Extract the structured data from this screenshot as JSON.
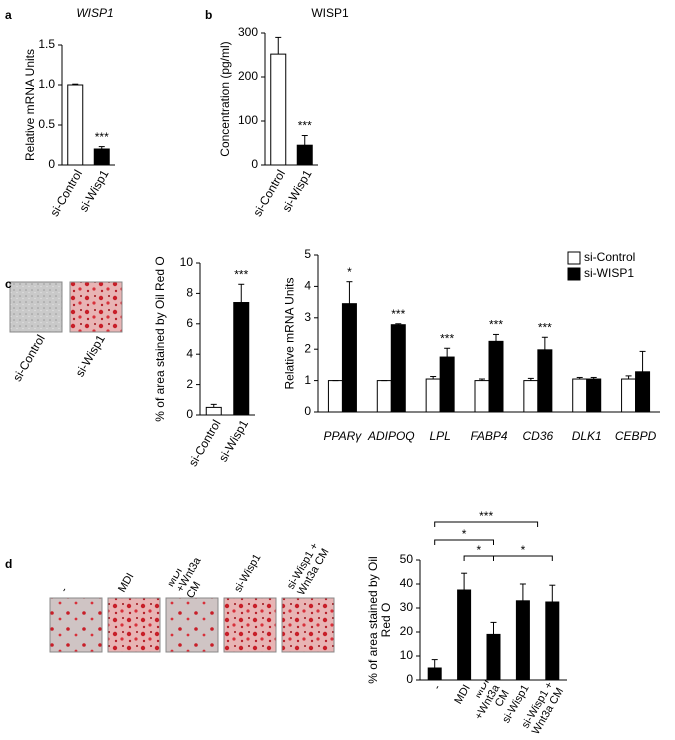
{
  "chart_data": [
    {
      "type": "bar",
      "panel": "a",
      "title": "WISP1",
      "y_label": "Relative mRNA Units",
      "categories": [
        "si-Control",
        "si-Wisp1"
      ],
      "series": [
        {
          "colors": [
            "#ffffff",
            "#000000"
          ],
          "values": [
            1.0,
            0.2
          ],
          "errors": [
            0.01,
            0.03
          ]
        }
      ],
      "annotations": [
        null,
        "***"
      ],
      "ylim": [
        0,
        1.5
      ],
      "yticks": [
        0,
        0.5,
        {
          "value": 1,
          "label": "1.0"
        },
        1.5
      ],
      "grid": false
    },
    {
      "type": "bar",
      "panel": "b",
      "title": "WISP1",
      "y_label": "Concentration  (pg/ml)",
      "categories": [
        "si-Control",
        "si-Wisp1"
      ],
      "series": [
        {
          "colors": [
            "#ffffff",
            "#000000"
          ],
          "values": [
            252,
            45
          ],
          "errors": [
            38,
            22
          ]
        }
      ],
      "annotations": [
        null,
        "***"
      ],
      "ylim": [
        0,
        300
      ],
      "yticks": [
        0,
        100,
        200,
        300
      ],
      "grid": false
    },
    {
      "type": "bar",
      "panel": "c",
      "image_labels": [
        "si-Control",
        "si-Wisp1"
      ],
      "y_label": "% of area stained by Oil Red O",
      "categories": [
        "si-Control",
        "si-Wisp1"
      ],
      "series": [
        {
          "colors": [
            "#ffffff",
            "#000000"
          ],
          "values": [
            0.5,
            7.4
          ],
          "errors": [
            0.2,
            1.2
          ]
        }
      ],
      "annotations": [
        null,
        "***"
      ],
      "ylim": [
        0,
        10
      ],
      "yticks": [
        0,
        2,
        4,
        6,
        8,
        10
      ],
      "grid": false
    },
    {
      "type": "bar",
      "y_label": "Relative mRNA Units",
      "categories": [
        "PPARγ",
        "ADIPOQ",
        "LPL",
        "FABP4",
        "CD36",
        "DLK1",
        "CEBPD"
      ],
      "series": [
        {
          "name": "si-Control",
          "color": "#ffffff",
          "values": [
            1,
            1,
            1.05,
            1,
            1,
            1.05,
            1.05
          ],
          "errors": [
            0,
            0,
            0.08,
            0.05,
            0.07,
            0.05,
            0.1
          ]
        },
        {
          "name": "si-WISP1",
          "color": "#000000",
          "values": [
            3.45,
            2.78,
            1.75,
            2.25,
            1.98,
            1.05,
            1.28
          ],
          "errors": [
            0.7,
            0.03,
            0.28,
            0.22,
            0.4,
            0.05,
            0.65
          ]
        }
      ],
      "annotations": [
        "*",
        "***",
        "***",
        "***",
        "***",
        null,
        null
      ],
      "legend": "top-right",
      "ylim": [
        0,
        5
      ],
      "yticks": [
        0,
        1,
        2,
        3,
        4,
        5
      ],
      "grid": false
    },
    {
      "type": "bar",
      "panel": "d",
      "image_labels": [
        "-",
        "MDI",
        "MDI +Wnt3a CM",
        "si-Wisp1",
        "si-Wisp1 + Wnt3a CM"
      ],
      "y_label": "% of area stained by Oil Red O",
      "categories": [
        "-",
        "MDI",
        "MDI +Wnt3a CM",
        "si-Wisp1",
        "si-Wisp1 + Wnt3a CM"
      ],
      "series": [
        {
          "colors": [
            "#000000",
            "#000000",
            "#000000",
            "#000000",
            "#000000"
          ],
          "values": [
            5,
            37.5,
            19,
            33,
            32.5
          ],
          "errors": [
            3.5,
            7,
            5,
            7,
            7
          ]
        }
      ],
      "significance": [
        "***",
        "*",
        "*",
        "*"
      ],
      "ylim": [
        0,
        50
      ],
      "yticks": [
        0,
        10,
        20,
        30,
        40,
        50
      ],
      "grid": false
    }
  ]
}
